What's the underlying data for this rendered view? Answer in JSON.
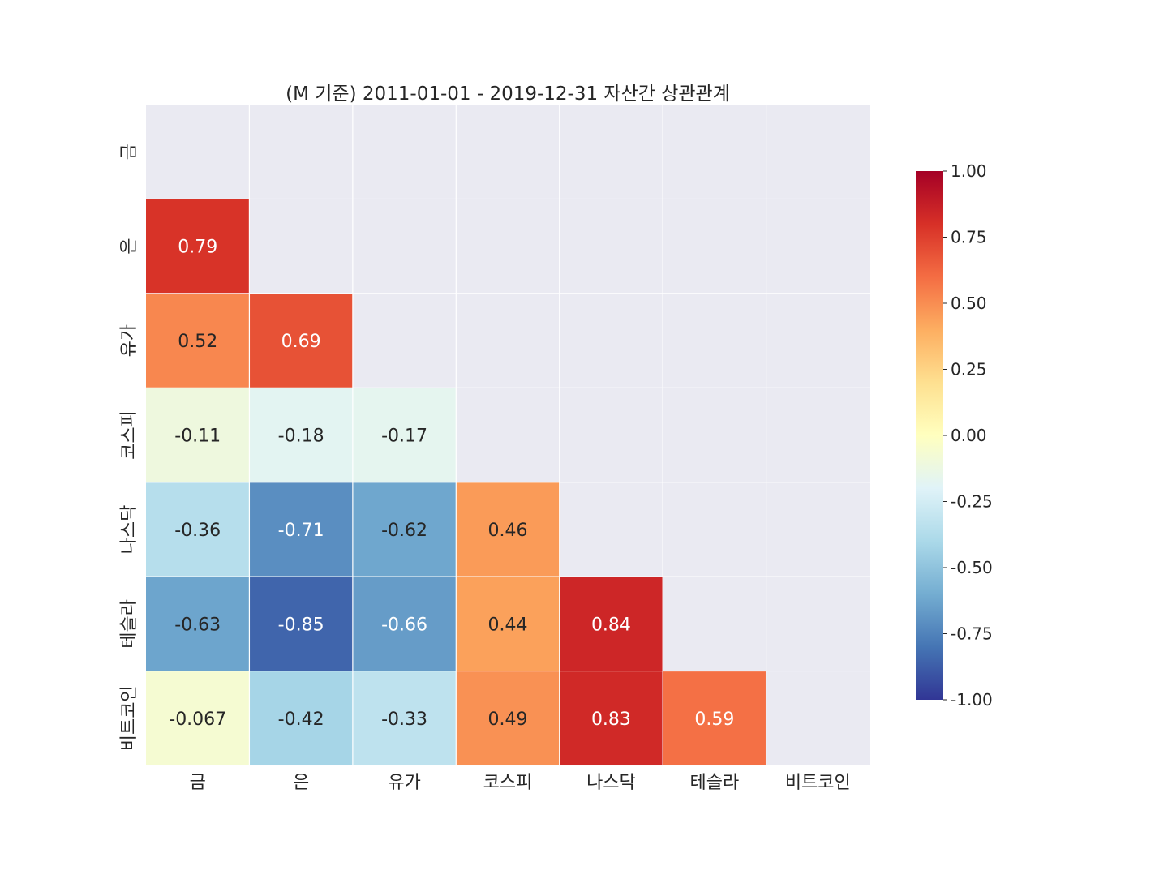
{
  "chart_data": {
    "type": "heatmap",
    "title": "(M 기준) 2011-01-01 - 2019-12-31 자산간 상관관계",
    "row_labels": [
      "금",
      "은",
      "유가",
      "코스피",
      "나스닥",
      "테슬라",
      "비트코인"
    ],
    "col_labels": [
      "금",
      "은",
      "유가",
      "코스피",
      "나스닥",
      "테슬라",
      "비트코인"
    ],
    "values": [
      [
        null,
        null,
        null,
        null,
        null,
        null,
        null
      ],
      [
        0.79,
        null,
        null,
        null,
        null,
        null,
        null
      ],
      [
        0.52,
        0.69,
        null,
        null,
        null,
        null,
        null
      ],
      [
        -0.11,
        -0.18,
        -0.17,
        null,
        null,
        null,
        null
      ],
      [
        -0.36,
        -0.71,
        -0.62,
        0.46,
        null,
        null,
        null
      ],
      [
        -0.63,
        -0.85,
        -0.66,
        0.44,
        0.84,
        null,
        null
      ],
      [
        -0.067,
        -0.42,
        -0.33,
        0.49,
        0.83,
        0.59,
        null
      ]
    ],
    "value_labels": [
      [
        null,
        null,
        null,
        null,
        null,
        null,
        null
      ],
      [
        "0.79",
        null,
        null,
        null,
        null,
        null,
        null
      ],
      [
        "0.52",
        "0.69",
        null,
        null,
        null,
        null,
        null
      ],
      [
        "-0.11",
        "-0.18",
        "-0.17",
        null,
        null,
        null,
        null
      ],
      [
        "-0.36",
        "-0.71",
        "-0.62",
        "0.46",
        null,
        null,
        null
      ],
      [
        "-0.63",
        "-0.85",
        "-0.66",
        "0.44",
        "0.84",
        null,
        null
      ],
      [
        "-0.067",
        "-0.42",
        "-0.33",
        "0.49",
        "0.83",
        "0.59",
        null
      ]
    ],
    "colormap": "RdYlBu_r",
    "vmin": -1.0,
    "vmax": 1.0,
    "colorbar_ticks": [
      "1.00",
      "0.75",
      "0.50",
      "0.25",
      "0.00",
      "-0.25",
      "-0.50",
      "-0.75",
      "-1.00"
    ],
    "colorbar_tick_values": [
      1.0,
      0.75,
      0.5,
      0.25,
      0.0,
      -0.25,
      -0.5,
      -0.75,
      -1.0
    ],
    "mask": "upper-triangle-including-diagonal",
    "colors": {
      "background": "#eaeaf2",
      "grid": "#ffffff",
      "text_dark": "#262626",
      "text_light": "#ffffff"
    }
  }
}
